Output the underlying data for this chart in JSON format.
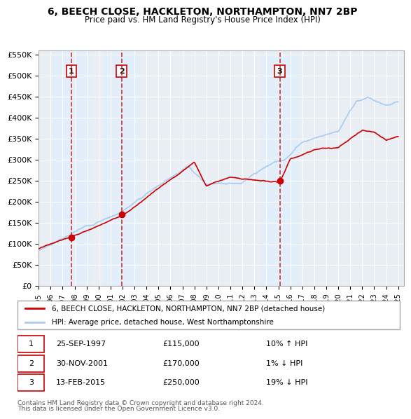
{
  "title": "6, BEECH CLOSE, HACKLETON, NORTHAMPTON, NN7 2BP",
  "subtitle": "Price paid vs. HM Land Registry's House Price Index (HPI)",
  "xlim": [
    1995.0,
    2025.5
  ],
  "ylim": [
    0,
    560000
  ],
  "yticks": [
    0,
    50000,
    100000,
    150000,
    200000,
    250000,
    300000,
    350000,
    400000,
    450000,
    500000,
    550000
  ],
  "ytick_labels": [
    "£0",
    "£50K",
    "£100K",
    "£150K",
    "£200K",
    "£250K",
    "£300K",
    "£350K",
    "£400K",
    "£450K",
    "£500K",
    "£550K"
  ],
  "xticks": [
    1995,
    1996,
    1997,
    1998,
    1999,
    2000,
    2001,
    2002,
    2003,
    2004,
    2005,
    2006,
    2007,
    2008,
    2009,
    2010,
    2011,
    2012,
    2013,
    2014,
    2015,
    2016,
    2017,
    2018,
    2019,
    2020,
    2021,
    2022,
    2023,
    2024,
    2025
  ],
  "sale_color": "#cc0000",
  "hpi_color": "#aaccee",
  "sale_dot_color": "#cc0000",
  "vline_color": "#cc0000",
  "vline_shade_color": "#ddeeff",
  "sale_points": [
    {
      "year": 1997.73,
      "value": 115000,
      "label": "1"
    },
    {
      "year": 2001.92,
      "value": 170000,
      "label": "2"
    },
    {
      "year": 2015.12,
      "value": 250000,
      "label": "3"
    }
  ],
  "legend_sale_label": "6, BEECH CLOSE, HACKLETON, NORTHAMPTON, NN7 2BP (detached house)",
  "legend_hpi_label": "HPI: Average price, detached house, West Northamptonshire",
  "table_rows": [
    {
      "num": "1",
      "date": "25-SEP-1997",
      "price": "£115,000",
      "hpi": "10% ↑ HPI"
    },
    {
      "num": "2",
      "date": "30-NOV-2001",
      "price": "£170,000",
      "hpi": "1% ↓ HPI"
    },
    {
      "num": "3",
      "date": "13-FEB-2015",
      "price": "£250,000",
      "hpi": "19% ↓ HPI"
    }
  ],
  "footnote1": "Contains HM Land Registry data © Crown copyright and database right 2024.",
  "footnote2": "This data is licensed under the Open Government Licence v3.0."
}
